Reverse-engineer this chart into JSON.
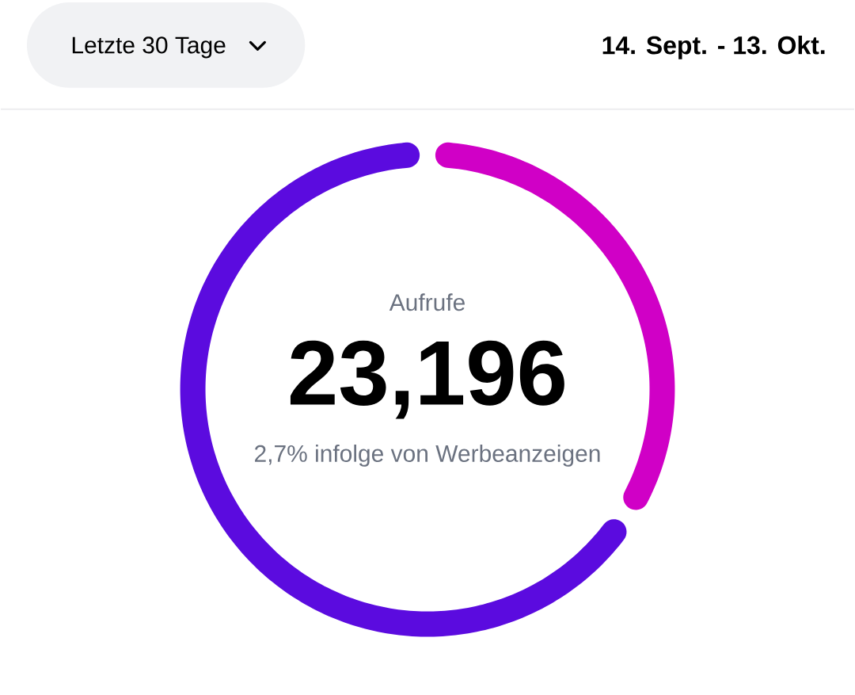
{
  "chart_data": {
    "type": "donut",
    "categories": [
      null,
      null
    ],
    "values": [
      34,
      66
    ],
    "colors": [
      "#d000c6",
      "#5b0bdf"
    ],
    "annotations": [
      "Letzte 30 Tage",
      "14. Sept. - 13. Okt.",
      "Aufrufe",
      "23,196",
      "2,7% infolge von Werbeanzeigen"
    ]
  }
}
